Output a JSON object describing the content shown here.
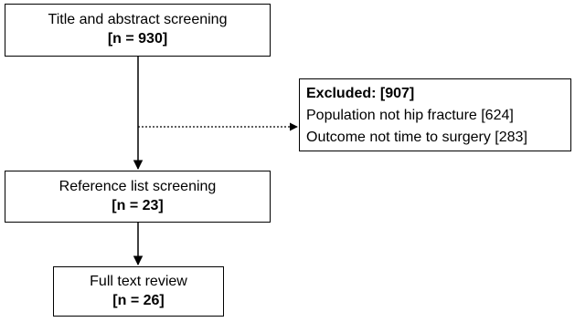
{
  "flow": {
    "screening": {
      "label": "Title and abstract screening",
      "count": "[n = 930]"
    },
    "reference": {
      "label": "Reference list screening",
      "count": "[n = 23]"
    },
    "fulltext": {
      "label": "Full text review",
      "count": "[n = 26]"
    },
    "excluded": {
      "title": "Excluded: [907]",
      "reasons": [
        "Population not hip fracture [624]",
        "Outcome not time to surgery [283]"
      ]
    }
  }
}
